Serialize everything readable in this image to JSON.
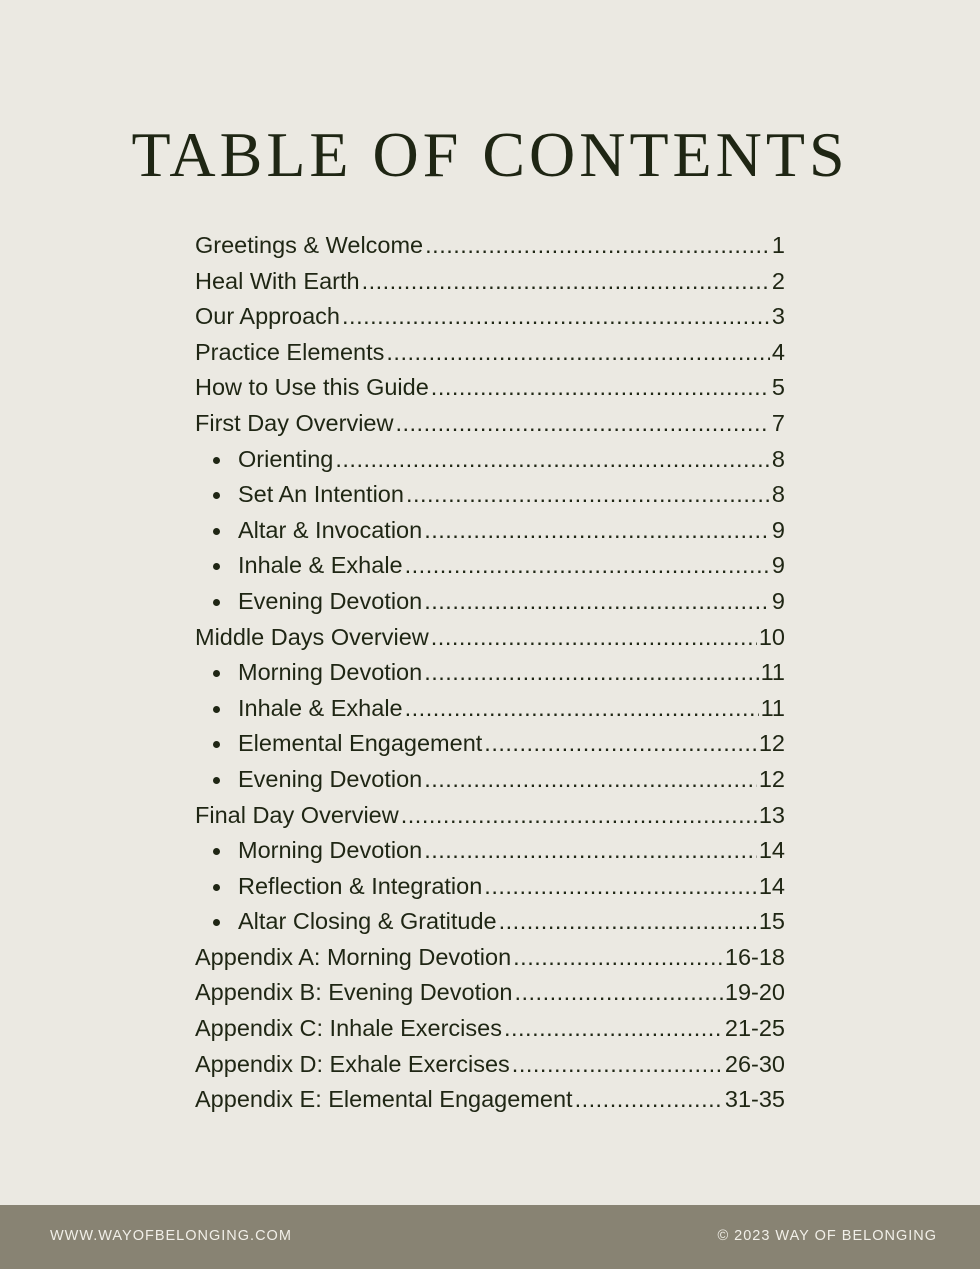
{
  "title": "TABLE OF CONTENTS",
  "entries": [
    {
      "label": "Greetings & Welcome",
      "page": "1",
      "sub": false
    },
    {
      "label": "Heal With Earth",
      "page": "2",
      "sub": false
    },
    {
      "label": "Our Approach",
      "page": "3",
      "sub": false
    },
    {
      "label": "Practice Elements",
      "page": "4",
      "sub": false
    },
    {
      "label": "How to Use this Guide",
      "page": "5",
      "sub": false
    },
    {
      "label": "First Day Overview",
      "page": "7",
      "sub": false
    },
    {
      "label": "Orienting",
      "page": "8",
      "sub": true
    },
    {
      "label": "Set An Intention",
      "page": "8",
      "sub": true
    },
    {
      "label": "Altar & Invocation",
      "page": "9",
      "sub": true
    },
    {
      "label": "Inhale & Exhale",
      "page": "9",
      "sub": true
    },
    {
      "label": "Evening Devotion",
      "page": "9",
      "sub": true
    },
    {
      "label": "Middle Days Overview",
      "page": "10",
      "sub": false
    },
    {
      "label": "Morning Devotion",
      "page": "11",
      "sub": true
    },
    {
      "label": "Inhale & Exhale",
      "page": "11",
      "sub": true
    },
    {
      "label": "Elemental Engagement",
      "page": "12",
      "sub": true
    },
    {
      "label": "Evening Devotion",
      "page": "12",
      "sub": true
    },
    {
      "label": "Final Day Overview",
      "page": "13",
      "sub": false
    },
    {
      "label": "Morning Devotion",
      "page": "14",
      "sub": true
    },
    {
      "label": "Reflection & Integration",
      "page": "14",
      "sub": true
    },
    {
      "label": "Altar Closing & Gratitude",
      "page": "15",
      "sub": true
    },
    {
      "label": "Appendix A: Morning Devotion",
      "page": "16-18",
      "sub": false
    },
    {
      "label": "Appendix B: Evening Devotion",
      "page": "19-20",
      "sub": false
    },
    {
      "label": "Appendix C: Inhale Exercises",
      "page": "21-25",
      "sub": false
    },
    {
      "label": "Appendix D: Exhale Exercises",
      "page": "26-30",
      "sub": false
    },
    {
      "label": "Appendix E: Elemental Engagement",
      "page": "31-35",
      "sub": false
    }
  ],
  "footer": {
    "website": "WWW.WAYOFBELONGING.COM",
    "copyright": "© 2023 WAY OF BELONGING"
  }
}
